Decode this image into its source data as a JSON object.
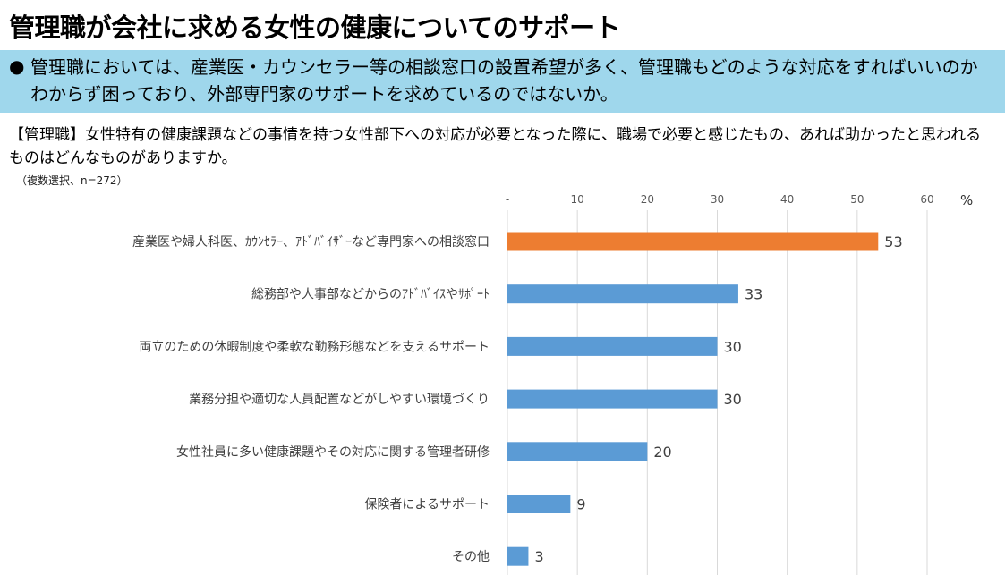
{
  "title": "管理職が会社に求める女性の健康についてのサポート",
  "summary": {
    "bullet": "●",
    "text": "管理職においては、産業医・カウンセラー等の相談窓口の設置希望が多く、管理職もどのような対応をすればいいのかわからず困っており、外部専門家のサポートを求めているのではないか。"
  },
  "question": "【管理職】女性特有の健康課題などの事情を持つ女性部下への対応が必要となった際に、職場で必要と感じたもの、あれば助かったと思われるものはどんなものがありますか。",
  "note": "（複数選択、n=272）",
  "unit": "%",
  "colors": {
    "highlight": "#ed7d31",
    "bar": "#5b9bd5",
    "grid": "#d9d9d9",
    "summary_bg": "#9fd7ec"
  },
  "chart_data": {
    "type": "bar",
    "orientation": "horizontal",
    "categories": [
      "産業医や婦人科医、ｶｳﾝｾﾗｰ、ｱﾄﾞﾊﾞｲｻﾞｰなど専門家への相談窓口",
      "総務部や人事部などからのｱﾄﾞﾊﾞｲｽやｻﾎﾟｰﾄ",
      "両立のための休暇制度や柔軟な勤務形態などを支えるサポート",
      "業務分担や適切な人員配置などがしやすい環境づくり",
      "女性社員に多い健康課題やその対応に関する管理者研修",
      "保険者によるサポート",
      "その他"
    ],
    "values": [
      53,
      33,
      30,
      30,
      20,
      9,
      3
    ],
    "value_labels": [
      "53",
      "33",
      "30",
      "30",
      "20",
      "9",
      "3"
    ],
    "highlight_index": 0,
    "xlim": [
      0,
      60
    ],
    "ticks": [
      0,
      10,
      20,
      30,
      40,
      50,
      60
    ],
    "tick_labels": [
      "-",
      "10",
      "20",
      "30",
      "40",
      "50",
      "60"
    ],
    "grid": true,
    "xlabel": "%"
  }
}
